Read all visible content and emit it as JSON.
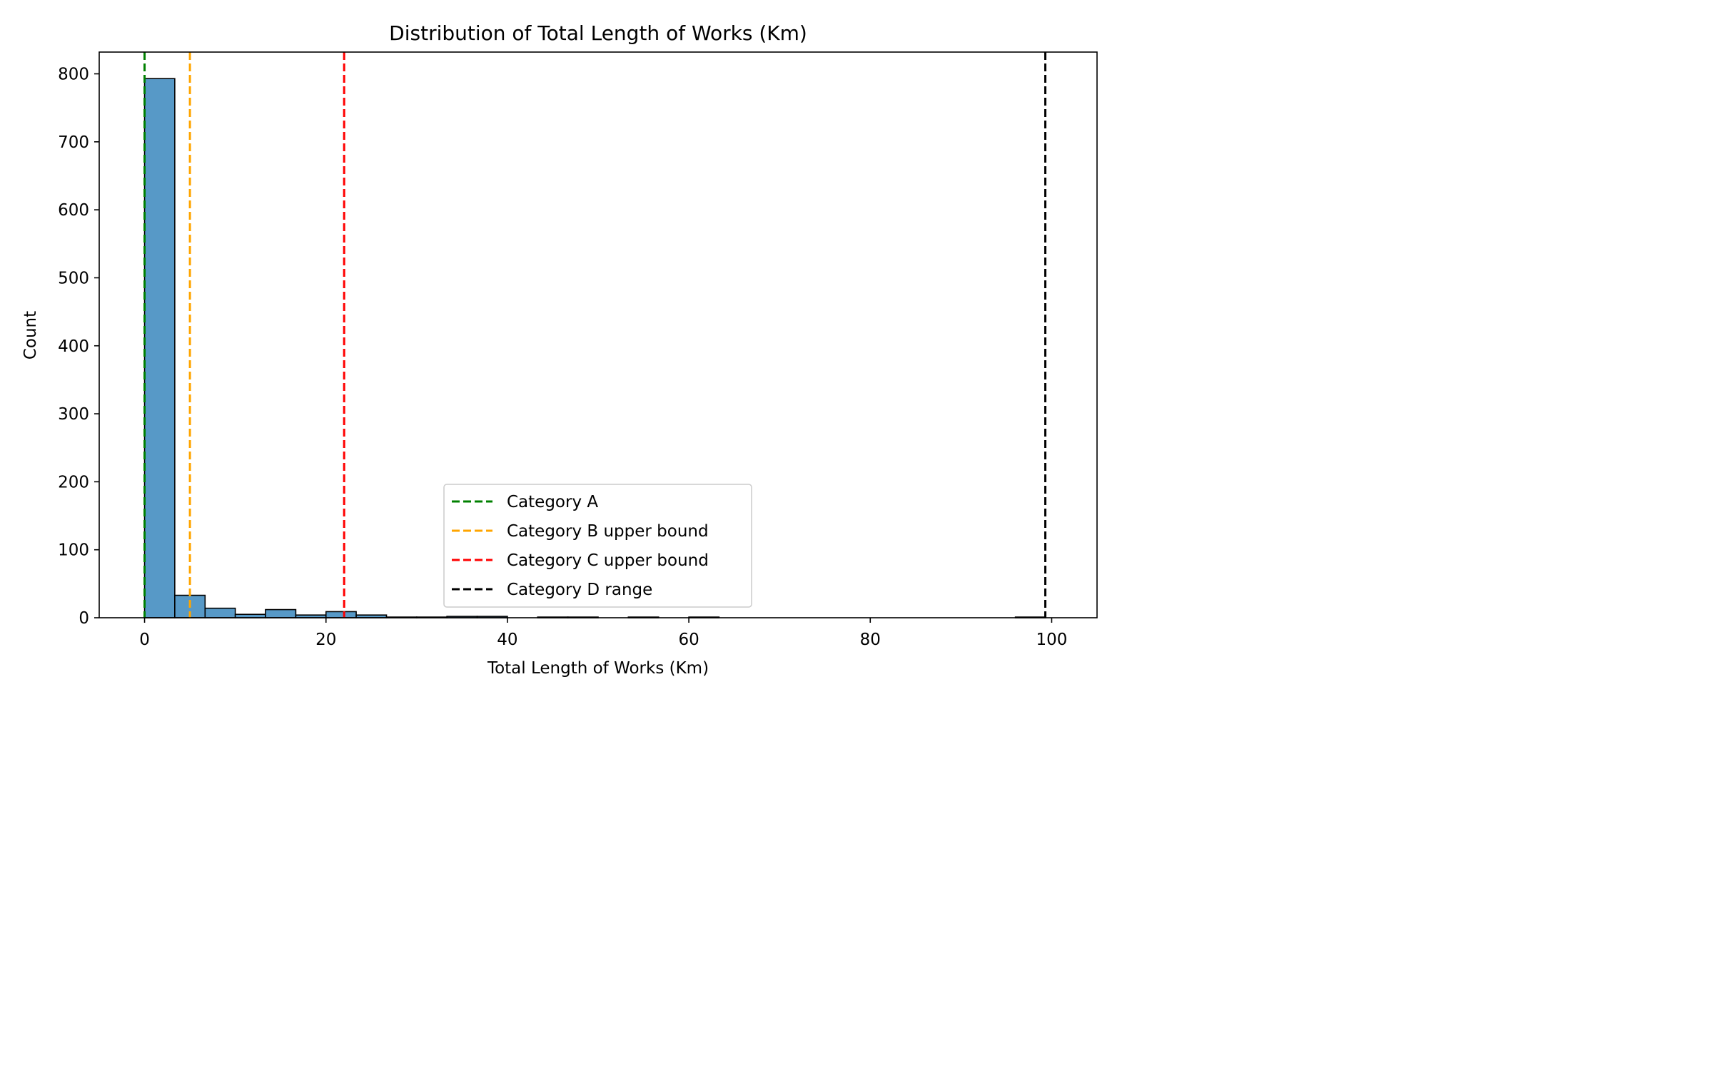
{
  "chart_data": {
    "type": "bar",
    "title": "Distribution of Total Length of Works (Km)",
    "xlabel": "Total Length of Works (Km)",
    "ylabel": "Count",
    "xlim": [
      -5,
      105
    ],
    "ylim": [
      0,
      832
    ],
    "xticks": [
      0,
      20,
      40,
      60,
      80,
      100
    ],
    "yticks": [
      0,
      100,
      200,
      300,
      400,
      500,
      600,
      700,
      800
    ],
    "grid": false,
    "bar_color": "#5799C7",
    "bins": [
      {
        "x0": 0.0,
        "x1": 3.33,
        "count": 793
      },
      {
        "x0": 3.33,
        "x1": 6.67,
        "count": 33
      },
      {
        "x0": 6.67,
        "x1": 10.0,
        "count": 14
      },
      {
        "x0": 10.0,
        "x1": 13.33,
        "count": 5
      },
      {
        "x0": 13.33,
        "x1": 16.67,
        "count": 12
      },
      {
        "x0": 16.67,
        "x1": 20.0,
        "count": 4
      },
      {
        "x0": 20.0,
        "x1": 23.33,
        "count": 9
      },
      {
        "x0": 23.33,
        "x1": 26.67,
        "count": 4
      },
      {
        "x0": 26.67,
        "x1": 30.0,
        "count": 1
      },
      {
        "x0": 30.0,
        "x1": 33.33,
        "count": 1
      },
      {
        "x0": 33.33,
        "x1": 36.67,
        "count": 2
      },
      {
        "x0": 36.67,
        "x1": 40.0,
        "count": 2
      },
      {
        "x0": 43.33,
        "x1": 46.67,
        "count": 1
      },
      {
        "x0": 46.67,
        "x1": 50.0,
        "count": 1
      },
      {
        "x0": 53.33,
        "x1": 56.67,
        "count": 1
      },
      {
        "x0": 60.0,
        "x1": 63.33,
        "count": 1
      },
      {
        "x0": 96.0,
        "x1": 99.33,
        "count": 1
      }
    ],
    "reference_lines": [
      {
        "name": "Category A",
        "x": 0,
        "color": "#008000"
      },
      {
        "name": "Category B upper bound",
        "x": 5,
        "color": "#FFA500"
      },
      {
        "name": "Category C upper bound",
        "x": 22,
        "color": "#FF0000"
      },
      {
        "name": "Category D range",
        "x": 99.3,
        "color": "#000000"
      }
    ],
    "legend_position": "lower center"
  }
}
